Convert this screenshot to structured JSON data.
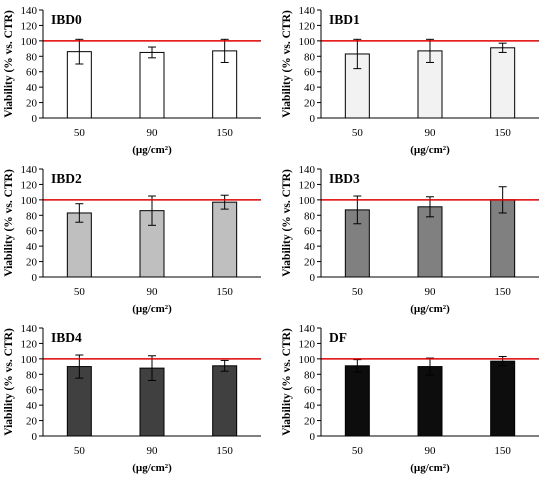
{
  "chart_data": [
    {
      "type": "bar",
      "title": "IBD0",
      "categories": [
        "50",
        "90",
        "150"
      ],
      "values": [
        86,
        85,
        87
      ],
      "errors": [
        16,
        7,
        15
      ],
      "bar_color": "#ffffff",
      "reference_line": 100,
      "xlabel": "(µg/cm²)",
      "ylabel": "Viability (% vs. CTR)",
      "ylim": [
        0,
        140
      ],
      "yticks": [
        "0",
        "20",
        "40",
        "60",
        "80",
        "100",
        "120",
        "140"
      ]
    },
    {
      "type": "bar",
      "title": "IBD1",
      "categories": [
        "50",
        "90",
        "150"
      ],
      "values": [
        83,
        87,
        91
      ],
      "errors": [
        19,
        15,
        6
      ],
      "bar_color": "#f2f2f2",
      "reference_line": 100,
      "xlabel": "(µg/cm²)",
      "ylabel": "Viability (% vs. CTR)",
      "ylim": [
        0,
        140
      ],
      "yticks": [
        "0",
        "20",
        "40",
        "60",
        "80",
        "100",
        "120",
        "140"
      ]
    },
    {
      "type": "bar",
      "title": "IBD2",
      "categories": [
        "50",
        "90",
        "150"
      ],
      "values": [
        83,
        86,
        97
      ],
      "errors": [
        12,
        19,
        9
      ],
      "bar_color": "#bfbfbf",
      "reference_line": 100,
      "xlabel": "(µg/cm²)",
      "ylabel": "Viability (% vs. CTR)",
      "ylim": [
        0,
        140
      ],
      "yticks": [
        "0",
        "20",
        "40",
        "60",
        "80",
        "100",
        "120",
        "140"
      ]
    },
    {
      "type": "bar",
      "title": "IBD3",
      "categories": [
        "50",
        "90",
        "150"
      ],
      "values": [
        87,
        91,
        100
      ],
      "errors": [
        18,
        13,
        17
      ],
      "bar_color": "#808080",
      "reference_line": 100,
      "xlabel": "(µg/cm²)",
      "ylabel": "Viability (% vs. CTR)",
      "ylim": [
        0,
        140
      ],
      "yticks": [
        "0",
        "20",
        "40",
        "60",
        "80",
        "100",
        "120",
        "140"
      ]
    },
    {
      "type": "bar",
      "title": "IBD4",
      "categories": [
        "50",
        "90",
        "150"
      ],
      "values": [
        90,
        88,
        91
      ],
      "errors": [
        15,
        16,
        7
      ],
      "bar_color": "#404040",
      "reference_line": 100,
      "xlabel": "(µg/cm²)",
      "ylabel": "Viability (% vs. CTR)",
      "ylim": [
        0,
        140
      ],
      "yticks": [
        "0",
        "20",
        "40",
        "60",
        "80",
        "100",
        "120",
        "140"
      ]
    },
    {
      "type": "bar",
      "title": "DF",
      "categories": [
        "50",
        "90",
        "150"
      ],
      "values": [
        91,
        90,
        97
      ],
      "errors": [
        8,
        11,
        6
      ],
      "bar_color": "#0d0d0d",
      "reference_line": 100,
      "xlabel": "(µg/cm²)",
      "ylabel": "Viability (% vs. CTR)",
      "ylim": [
        0,
        140
      ],
      "yticks": [
        "0",
        "20",
        "40",
        "60",
        "80",
        "100",
        "120",
        "140"
      ]
    }
  ],
  "colors": {
    "reference_line": "#e00000",
    "axis": "#000000",
    "bar_stroke": "#000000"
  }
}
